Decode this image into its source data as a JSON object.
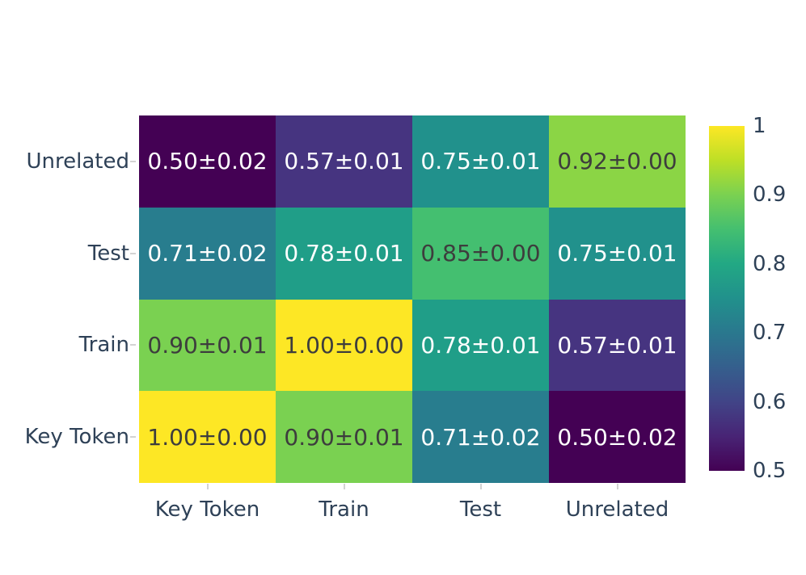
{
  "colors": {
    "background": "#ffffff",
    "axis_label": "#2e4157",
    "tick_mark": "#d3d3d3",
    "annot_light": "#ffffff",
    "annot_dark": "#3d3d3d"
  },
  "chart_data": {
    "type": "heatmap",
    "title": "",
    "xlabel": "",
    "ylabel": "",
    "x_categories": [
      "Key Token",
      "Train",
      "Test",
      "Unrelated"
    ],
    "y_categories_top_to_bottom": [
      "Unrelated",
      "Test",
      "Train",
      "Key Token"
    ],
    "values_rows_top_to_bottom": [
      [
        0.5,
        0.57,
        0.75,
        0.92
      ],
      [
        0.71,
        0.78,
        0.85,
        0.75
      ],
      [
        0.9,
        1.0,
        0.78,
        0.57
      ],
      [
        1.0,
        0.9,
        0.71,
        0.5
      ]
    ],
    "errors_rows_top_to_bottom": [
      [
        0.02,
        0.01,
        0.01,
        0.0
      ],
      [
        0.02,
        0.01,
        0.0,
        0.01
      ],
      [
        0.01,
        0.0,
        0.01,
        0.01
      ],
      [
        0.0,
        0.01,
        0.02,
        0.02
      ]
    ],
    "cell_labels": [
      [
        "0.50±0.02",
        "0.57±0.01",
        "0.75±0.01",
        "0.92±0.00"
      ],
      [
        "0.71±0.02",
        "0.78±0.01",
        "0.85±0.00",
        "0.75±0.01"
      ],
      [
        "0.90±0.01",
        "1.00±0.00",
        "0.78±0.01",
        "0.57±0.01"
      ],
      [
        "1.00±0.00",
        "0.90±0.01",
        "0.71±0.02",
        "0.50±0.02"
      ]
    ],
    "cell_colors": [
      [
        "#440154",
        "#463480",
        "#21918c",
        "#8bd545"
      ],
      [
        "#287d8e",
        "#209e88",
        "#44bf70",
        "#21918c"
      ],
      [
        "#7ad151",
        "#fde725",
        "#209e88",
        "#463480"
      ],
      [
        "#fde725",
        "#7ad151",
        "#287d8e",
        "#440154"
      ]
    ],
    "cell_text_colors": [
      [
        "#ffffff",
        "#ffffff",
        "#ffffff",
        "#3d3d3d"
      ],
      [
        "#ffffff",
        "#ffffff",
        "#3d3d3d",
        "#ffffff"
      ],
      [
        "#3d3d3d",
        "#3d3d3d",
        "#ffffff",
        "#ffffff"
      ],
      [
        "#3d3d3d",
        "#3d3d3d",
        "#ffffff",
        "#ffffff"
      ]
    ],
    "colormap": "viridis",
    "vmin": 0.5,
    "vmax": 1.0,
    "grid": false,
    "legend_position": "right-colorbar",
    "colorbar": {
      "tick_labels": [
        "1",
        "0.9",
        "0.8",
        "0.7",
        "0.6",
        "0.5"
      ],
      "gradient_stops_bottom_to_top": [
        "#440154",
        "#482475",
        "#414487",
        "#355f8d",
        "#2a788e",
        "#21918c",
        "#22a884",
        "#44bf70",
        "#7ad151",
        "#bddf26",
        "#fde725"
      ]
    }
  }
}
